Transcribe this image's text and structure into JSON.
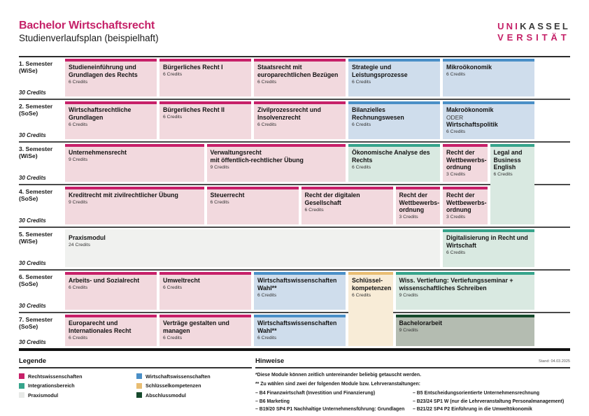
{
  "header": {
    "title": "Bachelor Wirtschaftsrecht",
    "subtitle": "Studienverlaufsplan (beispielhaft)",
    "logo": {
      "uni": "UNI",
      "kassel": "KASSEL",
      "versitaet": "VERSITÄT"
    }
  },
  "colors": {
    "brand": "#c52168",
    "types": {
      "law": {
        "bar": "#c72069",
        "bg": "#f2d9de"
      },
      "econ": {
        "bar": "#4a8fc7",
        "bg": "#cfddec"
      },
      "integ": {
        "bar": "#36a48b",
        "bg": "#d9e9e1"
      },
      "key": {
        "bar": "#e9bd72",
        "bg": "#f8ecd7"
      },
      "praxis": {
        "bar": "#f0f1ef",
        "bg": "#f0f1ef"
      },
      "final": {
        "bar": "#164a2c",
        "bg": "#b4bcb1"
      }
    }
  },
  "semesters": [
    {
      "label": "1. Semester",
      "term": "(WiSe)",
      "credits": "30 Credits",
      "modules": [
        {
          "title": "Studieneinführung und\nGrundlagen des Rechts",
          "credits": "6 Credits",
          "type": "law",
          "col": 1,
          "cols": 2,
          "rows": 1
        },
        {
          "title": "Bürgerliches Recht I",
          "credits": "6 Credits",
          "type": "law",
          "col": 3,
          "cols": 2,
          "rows": 1
        },
        {
          "title": "Staatsrecht mit\neuroparechtlichen Bezügen",
          "credits": "6 Credits",
          "type": "law",
          "col": 5,
          "cols": 2,
          "rows": 1
        },
        {
          "title": "Strategie und\nLeistungsprozesse",
          "credits": "6 Credits",
          "type": "econ",
          "col": 7,
          "cols": 2,
          "rows": 1
        },
        {
          "title": "Mikroökonomik",
          "credits": "6 Credits",
          "type": "econ",
          "col": 9,
          "cols": 2,
          "rows": 1
        }
      ]
    },
    {
      "label": "2. Semester",
      "term": "(SoSe)",
      "credits": "30 Credits",
      "modules": [
        {
          "title": "Wirtschaftsrechtliche\nGrundlagen",
          "credits": "6 Credits",
          "type": "law",
          "col": 1,
          "cols": 2,
          "rows": 1
        },
        {
          "title": "Bürgerliches Recht II",
          "credits": "6 Credits",
          "type": "law",
          "col": 3,
          "cols": 2,
          "rows": 1
        },
        {
          "title": "Zivilprozessrecht und\nInsolvenzrecht",
          "credits": "6 Credits",
          "type": "law",
          "col": 5,
          "cols": 2,
          "rows": 1
        },
        {
          "title": "Bilanzielles\nRechnungswesen",
          "credits": "6 Credits",
          "type": "econ",
          "col": 7,
          "cols": 2,
          "rows": 1
        },
        {
          "title": "Makroökonomik",
          "or_word": "ODER",
          "title2": "Wirtschaftspolitik",
          "credits": "6 Credits",
          "type": "econ",
          "col": 9,
          "cols": 2,
          "rows": 1
        }
      ]
    },
    {
      "label": "3. Semester",
      "term": "(WiSe)",
      "credits": "30 Credits",
      "modules": [
        {
          "title": "Unternehmensrecht",
          "credits": "9 Credits",
          "type": "law",
          "col": 1,
          "cols": 3,
          "rows": 1
        },
        {
          "title": "Verwaltungsrecht\nmit öffentlich-rechtlicher Übung",
          "credits": "9 Credits",
          "type": "law",
          "col": 4,
          "cols": 3,
          "rows": 1
        },
        {
          "title": "Ökonomische Analyse des\nRechts",
          "credits": "6 Credits",
          "type": "integ",
          "col": 7,
          "cols": 2,
          "rows": 1
        },
        {
          "title": "Recht der\nWettbewerbs-\nordnung",
          "credits": "3 Credits",
          "type": "law",
          "col": 9,
          "cols": 1,
          "rows": 1
        },
        {
          "title": "Legal and\nBusiness\nEnglish",
          "credits": "6 Credits",
          "type": "integ",
          "col": 10,
          "cols": 1,
          "rows": 2
        }
      ]
    },
    {
      "label": "4. Semester",
      "term": "(SoSe)",
      "credits": "30 Credits",
      "modules": [
        {
          "title": "Kreditrecht mit zivilrechtlicher Übung",
          "credits": "9 Credits",
          "type": "law",
          "col": 1,
          "cols": 3,
          "rows": 1
        },
        {
          "title": "Steuerrecht",
          "credits": "6 Credits",
          "type": "law",
          "col": 4,
          "cols": 2,
          "rows": 1
        },
        {
          "title": "Recht der digitalen\nGesellschaft",
          "credits": "6 Credits",
          "type": "law",
          "col": 6,
          "cols": 2,
          "rows": 1
        },
        {
          "title": "Recht der\nWettbewerbs-\nordnung",
          "credits": "3 Credits",
          "type": "law",
          "col": 8,
          "cols": 1,
          "rows": 1
        },
        {
          "title": "Recht der\nWettbewerbs-\nordnung",
          "credits": "3 Credits",
          "type": "law",
          "col": 9,
          "cols": 1,
          "rows": 1
        }
      ]
    },
    {
      "label": "5. Semester",
      "term": "(WiSe)",
      "credits": "30 Credits",
      "modules": [
        {
          "title": "Praxismodul",
          "credits": "24 Credits",
          "type": "praxis",
          "col": 1,
          "cols": 8,
          "rows": 1
        },
        {
          "title": "Digitalisierung in Recht und\nWirtschaft",
          "credits": "6 Credits",
          "type": "integ",
          "col": 9,
          "cols": 2,
          "rows": 1
        }
      ]
    },
    {
      "label": "6. Semester",
      "term": "(SoSe)",
      "credits": "30 Credits",
      "modules": [
        {
          "title": "Arbeits- und Sozialrecht",
          "credits": "6 Credits",
          "type": "law",
          "col": 1,
          "cols": 2,
          "rows": 1
        },
        {
          "title": "Umweltrecht",
          "credits": "6 Credits",
          "type": "law",
          "col": 3,
          "cols": 2,
          "rows": 1
        },
        {
          "title": "Wirtschaftswissenschaften\nWahl**",
          "credits": "6 Credits",
          "type": "econ",
          "col": 5,
          "cols": 2,
          "rows": 1
        },
        {
          "title": "Schlüssel-\nkompetenzen",
          "credits": "6 Credits",
          "type": "key",
          "col": 7,
          "cols": 1,
          "rows": 2
        },
        {
          "title": "Wiss. Vertiefung: Vertiefungsseminar +\nwissenschaftliches Schreiben",
          "credits": "9 Credits",
          "type": "integ",
          "col": 8,
          "cols": 3,
          "rows": 1
        }
      ]
    },
    {
      "label": "7. Semester",
      "term": "(SoSe)",
      "credits": "30 Credits",
      "modules": [
        {
          "title": "Europarecht und\nInternationales Recht",
          "credits": "6 Credits",
          "type": "law",
          "col": 1,
          "cols": 2,
          "rows": 1
        },
        {
          "title": "Verträge gestalten und\nmanagen",
          "credits": "6 Credits",
          "type": "law",
          "col": 3,
          "cols": 2,
          "rows": 1
        },
        {
          "title": "Wirtschaftswissenschaften\nWahl**",
          "credits": "6 Credits",
          "type": "econ",
          "col": 5,
          "cols": 2,
          "rows": 1
        },
        {
          "title": "Bachelorarbeit",
          "credits": "9 Credits",
          "type": "final",
          "col": 8,
          "cols": 3,
          "rows": 1
        }
      ]
    }
  ],
  "legend": {
    "title": "Legende",
    "items": [
      {
        "label": "Rechtswissenschaften",
        "type": "law"
      },
      {
        "label": "Integrationsbereich",
        "type": "integ"
      },
      {
        "label": "Praxismodul",
        "type": "praxis"
      },
      {
        "label": "Wirtschaftswissenschaften",
        "type": "econ"
      },
      {
        "label": "Schlüsselkompetenzen",
        "type": "key"
      },
      {
        "label": "Abschlussmodul",
        "type": "final"
      }
    ]
  },
  "notes": {
    "title": "Hinweise",
    "stamp": "Stand: 04.03.2025",
    "line1": "*Diese Module können zeitlich untereinander beliebig getauscht werden.",
    "line2": "** Zu wählen sind zwei der folgenden Module bzw. Lehrveranstaltungen:",
    "bullets_left": [
      "– B4 Finanzwirtschaft (Investition und Finanzierung)",
      "– B6 Marketing",
      "– B19/20 SP4 P1 Nachhaltige Unternehmensführung: Grundlagen"
    ],
    "bullets_right": [
      "– B5 Entscheidungsorientierte Unternehmensrechnung",
      "– B23/24 SP1 W (nur die Lehrveranstaltung Personalmanagement)",
      "– B21/22 SP4 P2 Einführung in die Umweltökonomik"
    ]
  }
}
